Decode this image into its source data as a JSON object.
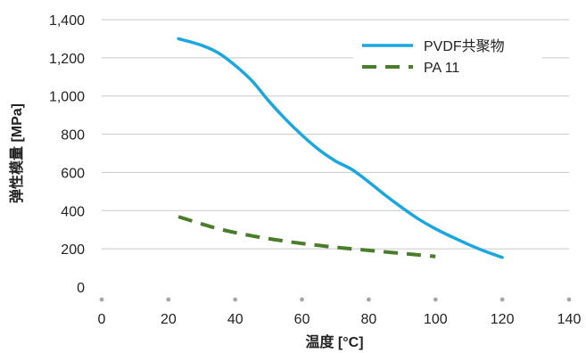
{
  "chart_data": {
    "type": "line",
    "xlabel": "温度 [°C]",
    "ylabel": "弹性模量 [MPa]",
    "xlim": [
      0,
      140
    ],
    "ylim": [
      0,
      1400
    ],
    "xticks": [
      0,
      20,
      40,
      60,
      80,
      100,
      120,
      140
    ],
    "yticks": [
      0,
      200,
      400,
      600,
      800,
      1000,
      1200,
      1400
    ],
    "xtick_labels": [
      "0",
      "20",
      "40",
      "60",
      "80",
      "100",
      "120",
      "140"
    ],
    "ytick_labels": [
      "0",
      "200",
      "400",
      "600",
      "800",
      "1,000",
      "1,200",
      "1,400"
    ],
    "grid": "horizontal",
    "legend_position": "top-right",
    "series": [
      {
        "name": "PVDF共聚物",
        "color": "#1aa7e0",
        "style": "solid",
        "x": [
          23,
          30,
          35,
          40,
          45,
          50,
          55,
          60,
          65,
          70,
          75,
          80,
          85,
          90,
          95,
          100,
          105,
          110,
          115,
          120
        ],
        "y": [
          1300,
          1265,
          1225,
          1160,
          1080,
          975,
          880,
          795,
          720,
          660,
          615,
          550,
          480,
          415,
          355,
          305,
          262,
          222,
          186,
          155
        ]
      },
      {
        "name": "PA 11",
        "color": "#4a7d2a",
        "style": "dashed",
        "x": [
          23,
          30,
          35,
          40,
          45,
          50,
          55,
          60,
          65,
          70,
          75,
          80,
          85,
          90,
          95,
          100
        ],
        "y": [
          368,
          330,
          305,
          285,
          268,
          253,
          240,
          228,
          218,
          208,
          200,
          192,
          184,
          176,
          168,
          160
        ]
      }
    ]
  }
}
